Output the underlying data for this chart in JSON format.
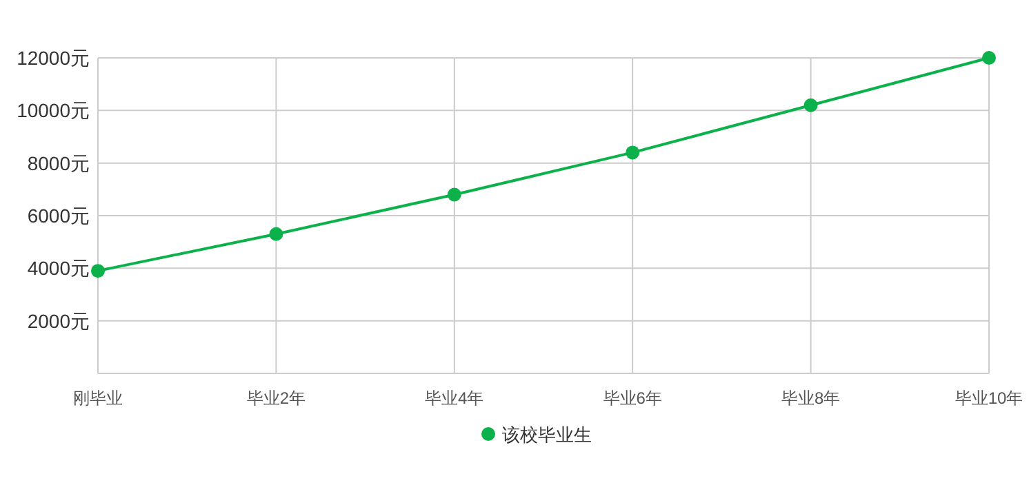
{
  "chart_data": {
    "type": "line",
    "categories": [
      "刚毕业",
      "毕业2年",
      "毕业4年",
      "毕业6年",
      "毕业8年",
      "毕业10年"
    ],
    "series": [
      {
        "name": "该校毕业生",
        "color": "#0db14b",
        "values": [
          3900,
          5300,
          6800,
          8400,
          10200,
          12000
        ]
      }
    ],
    "ylim": [
      0,
      12000
    ],
    "yticks": [
      {
        "value": 2000,
        "label": "2000元"
      },
      {
        "value": 4000,
        "label": "4000元"
      },
      {
        "value": 6000,
        "label": "6000元"
      },
      {
        "value": 8000,
        "label": "8000元"
      },
      {
        "value": 10000,
        "label": "10000元"
      },
      {
        "value": 12000,
        "label": "12000元"
      }
    ],
    "grid": true,
    "legend": "bottom",
    "marker": "circle",
    "line_style": "solid"
  }
}
